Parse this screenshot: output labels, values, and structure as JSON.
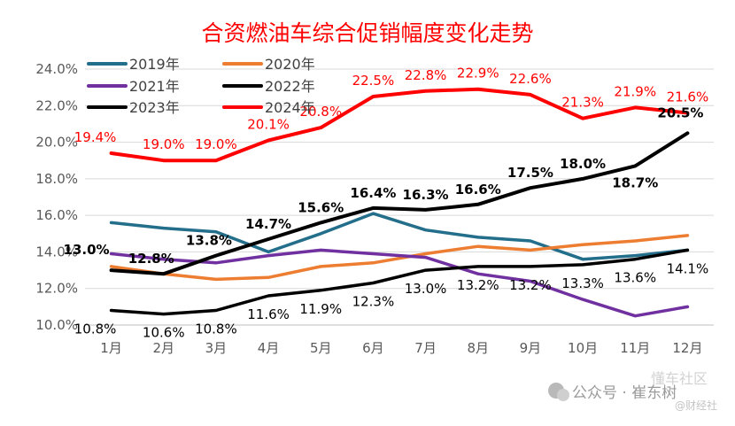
{
  "chart_data": {
    "type": "line",
    "title": "合资燃油车综合促销幅度变化走势",
    "categories": [
      "1月",
      "2月",
      "3月",
      "4月",
      "5月",
      "6月",
      "7月",
      "8月",
      "9月",
      "10月",
      "11月",
      "12月"
    ],
    "y_ticks": [
      "10.0%",
      "12.0%",
      "14.0%",
      "16.0%",
      "18.0%",
      "20.0%",
      "22.0%",
      "24.0%"
    ],
    "ylim": [
      10,
      24
    ],
    "grid": true,
    "legend_position": "top-left",
    "series": [
      {
        "name": "2019年",
        "color": "#236E8A",
        "values": [
          15.6,
          15.3,
          15.1,
          14.0,
          15.0,
          16.1,
          15.2,
          14.8,
          14.6,
          13.6,
          13.8,
          14.1
        ],
        "labels": []
      },
      {
        "name": "2020年",
        "color": "#ED7D31",
        "values": [
          13.2,
          12.8,
          12.5,
          12.6,
          13.2,
          13.4,
          13.9,
          14.3,
          14.1,
          14.4,
          14.6,
          14.9
        ],
        "labels": []
      },
      {
        "name": "2021年",
        "color": "#7030A0",
        "values": [
          13.9,
          13.6,
          13.4,
          13.8,
          14.1,
          13.9,
          13.7,
          12.8,
          12.4,
          11.4,
          10.5,
          11.0
        ],
        "labels": []
      },
      {
        "name": "2022年",
        "color": "#000000",
        "values": [
          10.8,
          10.6,
          10.8,
          11.6,
          11.9,
          12.3,
          13.0,
          13.2,
          13.2,
          13.3,
          13.6,
          14.1
        ],
        "labels": [
          "10.8%",
          "10.6%",
          "10.8%",
          "11.6%",
          "11.9%",
          "12.3%",
          "13.0%",
          "13.2%",
          "13.2%",
          "13.3%",
          "13.6%",
          "14.1%"
        ]
      },
      {
        "name": "2023年",
        "color": "#000000",
        "values": [
          13.0,
          12.8,
          13.8,
          14.7,
          15.6,
          16.4,
          16.3,
          16.6,
          17.5,
          18.0,
          18.7,
          20.5
        ],
        "labels": [
          "13.0%",
          "12.8%",
          "13.8%",
          "14.7%",
          "15.6%",
          "16.4%",
          "16.3%",
          "16.6%",
          "17.5%",
          "18.0%",
          "18.7%",
          "20.5%"
        ]
      },
      {
        "name": "2024年",
        "color": "#FF0000",
        "values": [
          19.4,
          19.0,
          19.0,
          20.1,
          20.8,
          22.5,
          22.8,
          22.9,
          22.6,
          21.3,
          21.9,
          21.6
        ],
        "labels": [
          "19.4%",
          "19.0%",
          "19.0%",
          "20.1%",
          "20.8%",
          "22.5%",
          "22.8%",
          "22.9%",
          "22.6%",
          "21.3%",
          "21.9%",
          "21.6%"
        ]
      }
    ]
  },
  "watermark": {
    "line1": "公众号 · 崔东树",
    "line2": "懂车社区",
    "line3": "@财经社"
  }
}
